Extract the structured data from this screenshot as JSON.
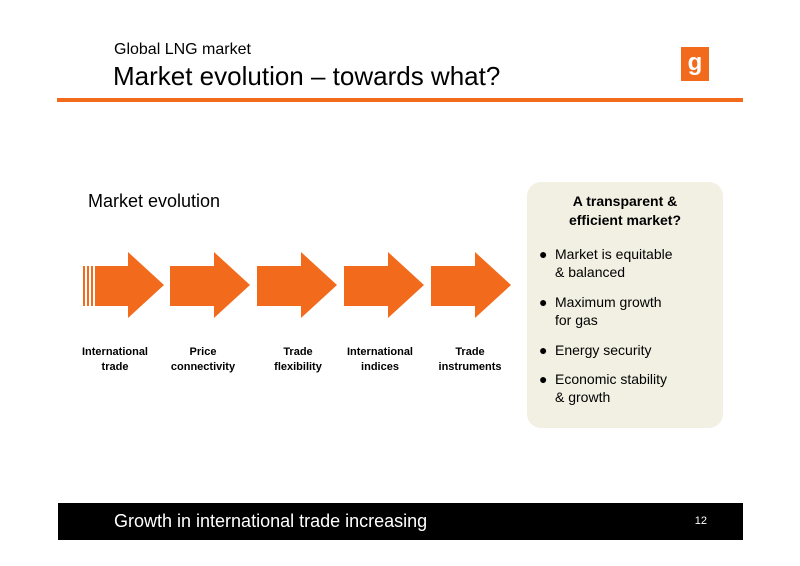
{
  "header": {
    "subtitle": "Global LNG market",
    "title": "Market evolution – towards what?",
    "logo_letter": "g"
  },
  "colors": {
    "accent": "#f26b1d",
    "panel": "#f2f0e3",
    "footer": "#000000"
  },
  "section_title": "Market evolution",
  "stages": [
    {
      "label_line1": "International",
      "label_line2": "trade"
    },
    {
      "label_line1": "Price",
      "label_line2": "connectivity"
    },
    {
      "label_line1": "Trade",
      "label_line2": "flexibility"
    },
    {
      "label_line1": "International",
      "label_line2": "indices"
    },
    {
      "label_line1": "Trade",
      "label_line2": "instruments"
    }
  ],
  "goal_box": {
    "title_line1": "A transparent &",
    "title_line2": "efficient market?",
    "bullets": [
      {
        "line1": "Market is equitable",
        "line2": "& balanced"
      },
      {
        "line1": "Maximum growth",
        "line2": "for gas"
      },
      {
        "line1": "Energy security",
        "line2": ""
      },
      {
        "line1": "Economic stability",
        "line2": "& growth"
      }
    ]
  },
  "footer": {
    "text": "Growth in international trade increasing",
    "page_number": "12"
  }
}
